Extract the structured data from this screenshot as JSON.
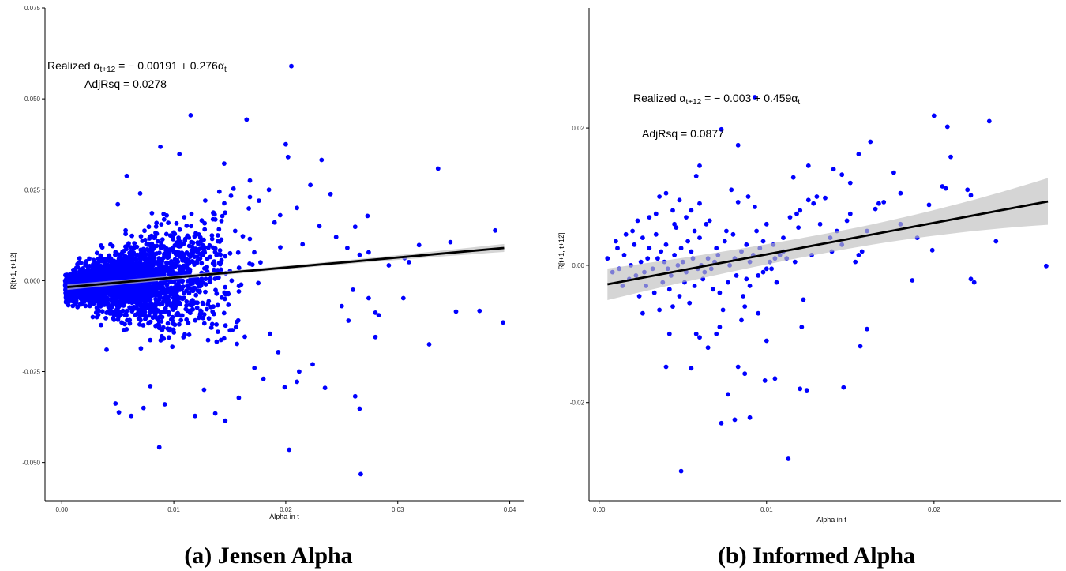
{
  "chart_data": [
    {
      "type": "scatter",
      "caption": "(a) Jensen Alpha",
      "xlabel": "Alpha in t",
      "ylabel": "R[t+1, t+12]",
      "xlim": [
        -0.0015,
        0.0413
      ],
      "ylim": [
        -0.0605,
        0.075
      ],
      "xticks": [
        "0.00",
        "0.01",
        "0.02",
        "0.03",
        "0.04"
      ],
      "yticks": [
        "-0.050",
        "-0.025",
        "0.000",
        "0.025",
        "0.050",
        "0.075"
      ],
      "point_color": "#0000ff",
      "grid": false,
      "annotation": {
        "eq_prefix": "Realized ",
        "alpha_sym": "α",
        "lhs_sub": "t+12",
        "eq_rhs": " = − 0.00191 + 0.276",
        "rhs_sub": "t",
        "adjrsq": "AdjRsq = 0.0278"
      },
      "fit": {
        "intercept": -0.00191,
        "slope": 0.276,
        "x_range": [
          0.0005,
          0.0395
        ],
        "se_halfwidth": [
          0.0005,
          0.0011
        ]
      },
      "cloud": {
        "n": 2600,
        "seed": 7
      },
      "points": [
        [
          0.0205,
          0.059
        ],
        [
          0.0115,
          0.0455
        ],
        [
          0.0165,
          0.0443
        ],
        [
          0.02,
          0.0375
        ],
        [
          0.0088,
          0.0368
        ],
        [
          0.0105,
          0.0348
        ],
        [
          0.0202,
          0.034
        ],
        [
          0.0232,
          0.0332
        ],
        [
          0.0145,
          0.0322
        ],
        [
          0.0336,
          0.0308
        ],
        [
          0.0058,
          0.0288
        ],
        [
          0.0168,
          0.0275
        ],
        [
          0.0222,
          0.0263
        ],
        [
          0.024,
          0.0238
        ],
        [
          0.0273,
          0.0178
        ],
        [
          0.0262,
          0.0148
        ],
        [
          0.0387,
          0.0138
        ],
        [
          0.0319,
          0.0098
        ],
        [
          0.0347,
          0.0106
        ],
        [
          0.0274,
          0.0078
        ],
        [
          0.0306,
          0.0062
        ],
        [
          0.031,
          0.0051
        ],
        [
          0.0266,
          0.0071
        ],
        [
          0.0292,
          0.0042
        ],
        [
          0.026,
          -0.0025
        ],
        [
          0.0274,
          -0.0048
        ],
        [
          0.0305,
          -0.0048
        ],
        [
          0.0352,
          -0.0085
        ],
        [
          0.0373,
          -0.0083
        ],
        [
          0.0394,
          -0.0115
        ],
        [
          0.028,
          -0.0088
        ],
        [
          0.0283,
          -0.0095
        ],
        [
          0.0256,
          -0.011
        ],
        [
          0.028,
          -0.0155
        ],
        [
          0.025,
          -0.007
        ],
        [
          0.0328,
          -0.0175
        ],
        [
          0.0224,
          -0.023
        ],
        [
          0.0212,
          -0.025
        ],
        [
          0.021,
          -0.0278
        ],
        [
          0.0199,
          -0.0293
        ],
        [
          0.0235,
          -0.0295
        ],
        [
          0.0262,
          -0.0318
        ],
        [
          0.0266,
          -0.0352
        ],
        [
          0.0203,
          -0.0465
        ],
        [
          0.0267,
          -0.0532
        ],
        [
          0.0087,
          -0.0458
        ],
        [
          0.0119,
          -0.0372
        ],
        [
          0.0146,
          -0.0385
        ],
        [
          0.0137,
          -0.0365
        ],
        [
          0.0158,
          -0.0322
        ],
        [
          0.0073,
          -0.035
        ],
        [
          0.0051,
          -0.0362
        ],
        [
          0.0048,
          -0.0338
        ],
        [
          0.0092,
          -0.034
        ],
        [
          0.0062,
          -0.0372
        ],
        [
          0.0079,
          -0.029
        ],
        [
          0.0127,
          -0.03
        ],
        [
          0.018,
          -0.027
        ],
        [
          0.0172,
          -0.024
        ],
        [
          0.004,
          -0.019
        ],
        [
          0.0168,
          0.023
        ],
        [
          0.0185,
          0.025
        ],
        [
          0.0176,
          0.022
        ],
        [
          0.021,
          0.02
        ],
        [
          0.0195,
          0.018
        ],
        [
          0.023,
          0.015
        ],
        [
          0.0245,
          0.012
        ],
        [
          0.0215,
          0.01
        ],
        [
          0.019,
          0.016
        ],
        [
          0.0255,
          0.009
        ],
        [
          0.005,
          0.021
        ],
        [
          0.007,
          0.024
        ]
      ]
    },
    {
      "type": "scatter",
      "caption": "(b) Informed Alpha",
      "xlabel": "Alpha in t",
      "ylabel": "R[t+1, t+12]",
      "xlim": [
        -0.0006,
        0.0276
      ],
      "ylim": [
        -0.0343,
        0.0375
      ],
      "xticks": [
        "0.00",
        "0.01",
        "0.02"
      ],
      "yticks": [
        "-0.02",
        "0.00",
        "0.02"
      ],
      "point_color": "#0000ff",
      "grid": false,
      "annotation": {
        "eq_prefix": "Realized ",
        "alpha_sym": "α",
        "lhs_sub": "t+12",
        "eq_rhs": " = − 0.003 + 0.459",
        "rhs_sub": "t",
        "adjrsq": "AdjRsq = 0.0877"
      },
      "fit": {
        "intercept": -0.003,
        "slope": 0.459,
        "x_range": [
          0.0005,
          0.0268
        ],
        "se_halfwidth": [
          0.0014,
          0.0034
        ]
      },
      "points": [
        [
          0.0093,
          0.0245
        ],
        [
          0.0073,
          0.0198
        ],
        [
          0.0083,
          0.0175
        ],
        [
          0.02,
          0.0218
        ],
        [
          0.0233,
          0.021
        ],
        [
          0.0208,
          0.0202
        ],
        [
          0.0162,
          0.018
        ],
        [
          0.021,
          0.0158
        ],
        [
          0.0155,
          0.0162
        ],
        [
          0.0176,
          0.0135
        ],
        [
          0.014,
          0.014
        ],
        [
          0.0145,
          0.0132
        ],
        [
          0.015,
          0.012
        ],
        [
          0.0125,
          0.0145
        ],
        [
          0.0116,
          0.0128
        ],
        [
          0.022,
          0.011
        ],
        [
          0.0205,
          0.0115
        ],
        [
          0.0207,
          0.0112
        ],
        [
          0.018,
          0.0105
        ],
        [
          0.0222,
          0.0102
        ],
        [
          0.0197,
          0.0088
        ],
        [
          0.0167,
          0.009
        ],
        [
          0.0165,
          0.0082
        ],
        [
          0.017,
          0.0092
        ],
        [
          0.0135,
          0.0098
        ],
        [
          0.013,
          0.01
        ],
        [
          0.0128,
          0.009
        ],
        [
          0.0125,
          0.0095
        ],
        [
          0.012,
          0.008
        ],
        [
          0.0118,
          0.0075
        ],
        [
          0.015,
          0.0075
        ],
        [
          0.0148,
          0.0065
        ],
        [
          0.016,
          0.005
        ],
        [
          0.018,
          0.006
        ],
        [
          0.019,
          0.004
        ],
        [
          0.0199,
          0.0022
        ],
        [
          0.0237,
          0.0035
        ],
        [
          0.0267,
          -0.0001
        ],
        [
          0.0222,
          -0.002
        ],
        [
          0.0224,
          -0.0025
        ],
        [
          0.0187,
          -0.0022
        ],
        [
          0.0155,
          0.0015
        ],
        [
          0.0157,
          0.002
        ],
        [
          0.0153,
          0.0005
        ],
        [
          0.0145,
          0.003
        ],
        [
          0.0138,
          0.004
        ],
        [
          0.011,
          0.002
        ],
        [
          0.0105,
          0.001
        ],
        [
          0.01,
          -0.0005
        ],
        [
          0.0098,
          -0.001
        ],
        [
          0.0095,
          -0.0015
        ],
        [
          0.009,
          0.0005
        ],
        [
          0.0088,
          -0.002
        ],
        [
          0.0106,
          -0.0025
        ],
        [
          0.0122,
          -0.005
        ],
        [
          0.016,
          -0.0093
        ],
        [
          0.0156,
          -0.0118
        ],
        [
          0.0121,
          -0.009
        ],
        [
          0.0095,
          -0.007
        ],
        [
          0.0087,
          -0.006
        ],
        [
          0.0085,
          -0.008
        ],
        [
          0.0072,
          -0.009
        ],
        [
          0.007,
          -0.01
        ],
        [
          0.0065,
          -0.012
        ],
        [
          0.0058,
          -0.01
        ],
        [
          0.006,
          -0.0105
        ],
        [
          0.01,
          -0.011
        ],
        [
          0.0042,
          -0.01
        ],
        [
          0.004,
          -0.0148
        ],
        [
          0.0055,
          -0.015
        ],
        [
          0.0083,
          -0.0148
        ],
        [
          0.0087,
          -0.0158
        ],
        [
          0.0099,
          -0.0168
        ],
        [
          0.0105,
          -0.0165
        ],
        [
          0.012,
          -0.018
        ],
        [
          0.0124,
          -0.0182
        ],
        [
          0.0146,
          -0.0178
        ],
        [
          0.0077,
          -0.0188
        ],
        [
          0.0073,
          -0.023
        ],
        [
          0.0081,
          -0.0225
        ],
        [
          0.009,
          -0.0222
        ],
        [
          0.0113,
          -0.0282
        ],
        [
          0.0049,
          -0.03
        ],
        [
          0.004,
          0.0105
        ],
        [
          0.0036,
          0.01
        ],
        [
          0.0048,
          0.0095
        ],
        [
          0.0058,
          0.013
        ],
        [
          0.006,
          0.0145
        ],
        [
          0.0079,
          0.011
        ],
        [
          0.0083,
          0.0092
        ],
        [
          0.0089,
          0.01
        ],
        [
          0.0093,
          0.0085
        ],
        [
          0.006,
          0.009
        ],
        [
          0.0055,
          0.008
        ],
        [
          0.0052,
          0.007
        ],
        [
          0.0045,
          0.006
        ],
        [
          0.003,
          0.007
        ],
        [
          0.002,
          0.005
        ],
        [
          0.001,
          0.0035
        ],
        [
          0.0005,
          0.001
        ],
        [
          0.0008,
          -0.001
        ],
        [
          0.0012,
          -0.0005
        ],
        [
          0.0015,
          0.0015
        ],
        [
          0.0018,
          -0.002
        ],
        [
          0.0022,
          -0.0015
        ],
        [
          0.0025,
          0.0005
        ],
        [
          0.0028,
          -0.003
        ],
        [
          0.003,
          0.0025
        ],
        [
          0.0033,
          -0.004
        ],
        [
          0.0035,
          0.001
        ],
        [
          0.0038,
          -0.0025
        ],
        [
          0.004,
          0.003
        ],
        [
          0.0042,
          -0.0035
        ],
        [
          0.0045,
          0.0015
        ],
        [
          0.0048,
          -0.0045
        ],
        [
          0.005,
          0.0005
        ],
        [
          0.0052,
          -0.001
        ],
        [
          0.0055,
          0.002
        ],
        [
          0.0057,
          -0.003
        ],
        [
          0.006,
          0.004
        ],
        [
          0.0062,
          -0.002
        ],
        [
          0.0065,
          0.001
        ],
        [
          0.0067,
          -0.0005
        ],
        [
          0.007,
          0.0025
        ],
        [
          0.0072,
          -0.004
        ],
        [
          0.0075,
          0.0035
        ],
        [
          0.0078,
          0.0
        ],
        [
          0.008,
          0.0045
        ],
        [
          0.0082,
          -0.0015
        ],
        [
          0.0085,
          0.002
        ],
        [
          0.0088,
          0.003
        ],
        [
          0.009,
          -0.003
        ],
        [
          0.0092,
          0.0015
        ],
        [
          0.0096,
          0.0025
        ],
        [
          0.0098,
          0.0035
        ],
        [
          0.0102,
          0.0005
        ],
        [
          0.0104,
          0.003
        ],
        [
          0.0108,
          0.0015
        ],
        [
          0.011,
          0.004
        ],
        [
          0.0112,
          0.001
        ],
        [
          0.0026,
          0.004
        ],
        [
          0.0024,
          -0.0045
        ],
        [
          0.0034,
          0.0045
        ],
        [
          0.0044,
          -0.006
        ],
        [
          0.0046,
          0.0055
        ],
        [
          0.0036,
          -0.0065
        ],
        [
          0.0026,
          -0.007
        ],
        [
          0.0016,
          0.0045
        ],
        [
          0.0054,
          -0.0055
        ],
        [
          0.0064,
          0.006
        ],
        [
          0.0074,
          -0.0065
        ],
        [
          0.0066,
          0.0065
        ],
        [
          0.0076,
          0.005
        ],
        [
          0.0086,
          -0.0045
        ],
        [
          0.0094,
          0.005
        ],
        [
          0.0032,
          -0.0005
        ],
        [
          0.0037,
          0.002
        ],
        [
          0.0043,
          -0.0015
        ],
        [
          0.0047,
          0.0
        ],
        [
          0.0053,
          0.0035
        ],
        [
          0.0059,
          -0.0005
        ],
        [
          0.0063,
          -0.001
        ],
        [
          0.0069,
          0.0005
        ],
        [
          0.0071,
          0.0015
        ],
        [
          0.0077,
          -0.0025
        ],
        [
          0.0081,
          0.001
        ],
        [
          0.0039,
          0.0005
        ],
        [
          0.0029,
          0.001
        ],
        [
          0.0019,
          0.0
        ],
        [
          0.0014,
          -0.003
        ],
        [
          0.0011,
          0.0025
        ],
        [
          0.0021,
          0.003
        ],
        [
          0.0027,
          -0.001
        ],
        [
          0.0041,
          -0.0005
        ],
        [
          0.0049,
          0.0025
        ],
        [
          0.0051,
          -0.0025
        ],
        [
          0.0056,
          0.001
        ],
        [
          0.0061,
          0.0
        ],
        [
          0.0068,
          -0.0035
        ],
        [
          0.0034,
          0.0075
        ],
        [
          0.0023,
          0.0065
        ],
        [
          0.0044,
          0.008
        ],
        [
          0.0057,
          0.005
        ],
        [
          0.01,
          0.006
        ],
        [
          0.0114,
          0.007
        ],
        [
          0.0119,
          0.0055
        ],
        [
          0.0132,
          0.006
        ],
        [
          0.0142,
          0.005
        ],
        [
          0.0139,
          0.002
        ],
        [
          0.0127,
          0.0015
        ],
        [
          0.0117,
          0.0005
        ],
        [
          0.0103,
          -0.0005
        ]
      ]
    }
  ]
}
